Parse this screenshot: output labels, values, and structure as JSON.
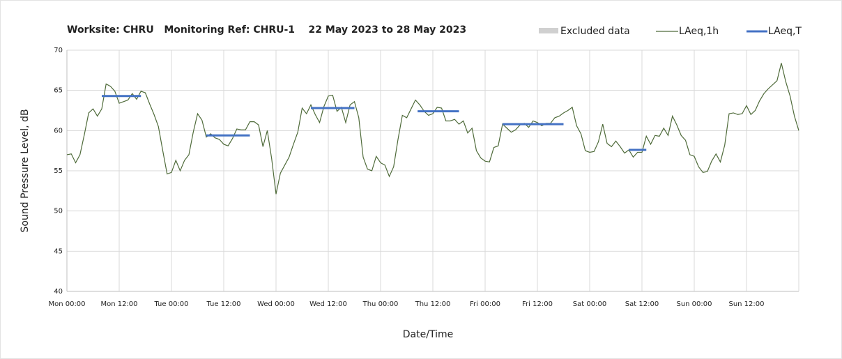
{
  "chart_data": {
    "type": "line",
    "title": "Worksite: CHRU   Monitoring Ref: CHRU-1    22 May 2023 to 28 May 2023",
    "x_label": "Date/Time",
    "y_label": "Sound Pressure Level, dB",
    "xlim": [
      0,
      168
    ],
    "ylim": [
      40,
      70
    ],
    "yticks": [
      40,
      45,
      50,
      55,
      60,
      65,
      70
    ],
    "xticks": [
      {
        "value": 0,
        "label": "Mon 00:00"
      },
      {
        "value": 12,
        "label": "Mon 12:00"
      },
      {
        "value": 24,
        "label": "Tue 00:00"
      },
      {
        "value": 36,
        "label": "Tue 12:00"
      },
      {
        "value": 48,
        "label": "Wed 00:00"
      },
      {
        "value": 60,
        "label": "Wed 12:00"
      },
      {
        "value": 72,
        "label": "Thu 00:00"
      },
      {
        "value": 84,
        "label": "Thu 12:00"
      },
      {
        "value": 96,
        "label": "Fri 00:00"
      },
      {
        "value": 108,
        "label": "Fri 12:00"
      },
      {
        "value": 120,
        "label": "Sat 00:00"
      },
      {
        "value": 132,
        "label": "Sat 12:00"
      },
      {
        "value": 144,
        "label": "Sun 00:00"
      },
      {
        "value": 156,
        "label": "Sun 12:00"
      }
    ],
    "grid": true,
    "excluded": {
      "name": "Excluded data",
      "color": "#d0d0d0"
    },
    "series": [
      {
        "name": "LAeq,1h",
        "color": "#4f6b3a",
        "values": [
          57,
          57.1,
          56,
          57,
          59.5,
          62.2,
          62.7,
          61.8,
          62.7,
          65.8,
          65.5,
          64.9,
          63.4,
          63.6,
          63.8,
          64.6,
          63.9,
          64.9,
          64.7,
          63.3,
          62,
          60.5,
          57.5,
          54.6,
          54.8,
          56.3,
          55,
          56.3,
          57,
          59.8,
          62.1,
          61.3,
          59.2,
          59.6,
          59.1,
          58.9,
          58.3,
          58.1,
          59,
          60.2,
          60.1,
          60.1,
          61.1,
          61.1,
          60.7,
          58,
          60,
          56.5,
          52.1,
          54.7,
          55.7,
          56.7,
          58.3,
          59.8,
          62.8,
          62.1,
          63.2,
          62,
          61,
          63,
          64.3,
          64.4,
          62.4,
          62.9,
          61,
          63.2,
          63.6,
          61.6,
          56.7,
          55.2,
          55,
          56.8,
          56,
          55.7,
          54.3,
          55.5,
          58.9,
          61.9,
          61.6,
          62.7,
          63.8,
          63.2,
          62.4,
          61.9,
          62.1,
          62.9,
          62.8,
          61.2,
          61.2,
          61.4,
          60.8,
          61.2,
          59.7,
          60.3,
          57.5,
          56.6,
          56.2,
          56.1,
          57.9,
          58.1,
          60.8,
          60.3,
          59.8,
          60.1,
          60.7,
          60.9,
          60.4,
          61.2,
          61,
          60.6,
          60.9,
          60.9,
          61.6,
          61.8,
          62.2,
          62.5,
          62.9,
          60.6,
          59.6,
          57.5,
          57.3,
          57.4,
          58.6,
          60.8,
          58.4,
          58,
          58.7,
          58,
          57.2,
          57.6,
          56.7,
          57.3,
          57.3,
          59.3,
          58.3,
          59.4,
          59.3,
          60.3,
          59.4,
          61.8,
          60.7,
          59.4,
          58.8,
          57,
          56.8,
          55.5,
          54.8,
          54.9,
          56.2,
          57.1,
          56.1,
          58.2,
          62.1,
          62.2,
          62,
          62.1,
          63.1,
          62,
          62.5,
          63.7,
          64.6,
          65.2,
          65.7,
          66.2,
          68.4,
          66.1,
          64.3,
          61.8,
          60
        ]
      },
      {
        "name": "LAeq,T",
        "color": "#4472c4",
        "segments": [
          {
            "x": [
              8,
              17
            ],
            "value": 64.3
          },
          {
            "x": [
              32,
              42
            ],
            "value": 59.4
          },
          {
            "x": [
              56,
              66
            ],
            "value": 62.8
          },
          {
            "x": [
              80.5,
              90
            ],
            "value": 62.4
          },
          {
            "x": [
              100,
              114
            ],
            "value": 60.8
          },
          {
            "x": [
              129,
              133
            ],
            "value": 57.6
          }
        ]
      }
    ]
  }
}
